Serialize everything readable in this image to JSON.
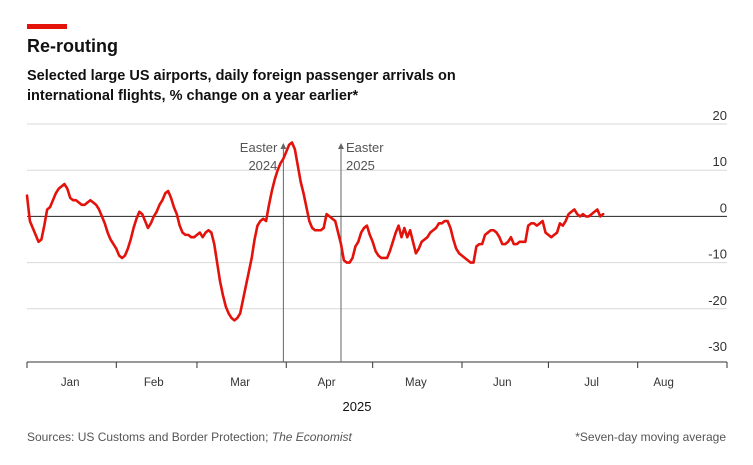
{
  "header": {
    "accent_color": "#e3120b",
    "title": "Re-routing",
    "subtitle": "Selected large US airports, daily foreign passenger arrivals on international flights, % change on a year earlier*"
  },
  "footer": {
    "source_prefix": "Sources: US Customs and Border Protection; ",
    "source_italic": "The Economist",
    "note": "*Seven-day moving average"
  },
  "chart_data": {
    "type": "line",
    "title": "Re-routing",
    "subtitle": "Selected large US airports, daily foreign passenger arrivals on international flights, % change on a year earlier*",
    "xlabel": "2025",
    "ylabel": "",
    "ylim": [
      -30,
      20
    ],
    "yticks": [
      20,
      10,
      0,
      -10,
      -20,
      -30
    ],
    "yticklabels": [
      "20",
      "10",
      "0",
      "-10",
      "-20",
      "-30"
    ],
    "xlim": [
      "2025-01-01",
      "2025-09-01"
    ],
    "months": [
      {
        "label": "Jan",
        "start": "2025-01-01",
        "mid": "2025-01-16"
      },
      {
        "label": "Feb",
        "start": "2025-02-01",
        "mid": "2025-02-14"
      },
      {
        "label": "Mar",
        "start": "2025-03-01",
        "mid": "2025-03-16"
      },
      {
        "label": "Apr",
        "start": "2025-04-01",
        "mid": "2025-04-15"
      },
      {
        "label": "May",
        "start": "2025-05-01",
        "mid": "2025-05-16"
      },
      {
        "label": "Jun",
        "start": "2025-06-01",
        "mid": "2025-06-15"
      },
      {
        "label": "Jul",
        "start": "2025-07-01",
        "mid": "2025-07-16"
      },
      {
        "label": "Aug",
        "start": "2025-08-01",
        "mid": "2025-08-10"
      }
    ],
    "month_end": "2025-09-01",
    "grid": true,
    "line_color": "#e3120b",
    "annotations": [
      {
        "date": "2025-03-31",
        "line1": "Easter",
        "line2": "2024",
        "align": "left"
      },
      {
        "date": "2025-04-20",
        "line1": "Easter",
        "line2": "2025",
        "align": "right"
      }
    ],
    "series": [
      {
        "values": [
          [
            "2025-01-01",
            4.5
          ],
          [
            "2025-01-02",
            -1
          ],
          [
            "2025-01-03",
            -2.5
          ],
          [
            "2025-01-04",
            -4
          ],
          [
            "2025-01-05",
            -5.5
          ],
          [
            "2025-01-06",
            -5
          ],
          [
            "2025-01-07",
            -2
          ],
          [
            "2025-01-08",
            1.5
          ],
          [
            "2025-01-09",
            2
          ],
          [
            "2025-01-10",
            3.5
          ],
          [
            "2025-01-11",
            5
          ],
          [
            "2025-01-12",
            6
          ],
          [
            "2025-01-13",
            6.5
          ],
          [
            "2025-01-14",
            7
          ],
          [
            "2025-01-15",
            6
          ],
          [
            "2025-01-16",
            4
          ],
          [
            "2025-01-17",
            3.5
          ],
          [
            "2025-01-18",
            3.5
          ],
          [
            "2025-01-19",
            3
          ],
          [
            "2025-01-20",
            2.5
          ],
          [
            "2025-01-21",
            2.5
          ],
          [
            "2025-01-22",
            3
          ],
          [
            "2025-01-23",
            3.5
          ],
          [
            "2025-01-24",
            3
          ],
          [
            "2025-01-25",
            2.5
          ],
          [
            "2025-01-26",
            1.5
          ],
          [
            "2025-01-27",
            0
          ],
          [
            "2025-01-28",
            -1.5
          ],
          [
            "2025-01-29",
            -3.5
          ],
          [
            "2025-01-30",
            -5
          ],
          [
            "2025-01-31",
            -6
          ],
          [
            "2025-02-01",
            -7
          ],
          [
            "2025-02-02",
            -8.5
          ],
          [
            "2025-02-03",
            -9
          ],
          [
            "2025-02-04",
            -8.5
          ],
          [
            "2025-02-05",
            -7
          ],
          [
            "2025-02-06",
            -5
          ],
          [
            "2025-02-07",
            -2.5
          ],
          [
            "2025-02-08",
            -0.5
          ],
          [
            "2025-02-09",
            1
          ],
          [
            "2025-02-10",
            0.5
          ],
          [
            "2025-02-11",
            -1
          ],
          [
            "2025-02-12",
            -2.5
          ],
          [
            "2025-02-13",
            -1.5
          ],
          [
            "2025-02-14",
            0
          ],
          [
            "2025-02-15",
            1
          ],
          [
            "2025-02-16",
            2.5
          ],
          [
            "2025-02-17",
            3.5
          ],
          [
            "2025-02-18",
            5
          ],
          [
            "2025-02-19",
            5.5
          ],
          [
            "2025-02-20",
            4
          ],
          [
            "2025-02-21",
            2
          ],
          [
            "2025-02-22",
            0.5
          ],
          [
            "2025-02-23",
            -2
          ],
          [
            "2025-02-24",
            -3.5
          ],
          [
            "2025-02-25",
            -4
          ],
          [
            "2025-02-26",
            -4
          ],
          [
            "2025-02-27",
            -4.5
          ],
          [
            "2025-02-28",
            -4.5
          ],
          [
            "2025-03-01",
            -4
          ],
          [
            "2025-03-02",
            -3.5
          ],
          [
            "2025-03-03",
            -4.5
          ],
          [
            "2025-03-04",
            -3.5
          ],
          [
            "2025-03-05",
            -3
          ],
          [
            "2025-03-06",
            -3.5
          ],
          [
            "2025-03-07",
            -6
          ],
          [
            "2025-03-08",
            -10
          ],
          [
            "2025-03-09",
            -14
          ],
          [
            "2025-03-10",
            -17
          ],
          [
            "2025-03-11",
            -19.5
          ],
          [
            "2025-03-12",
            -21
          ],
          [
            "2025-03-13",
            -22
          ],
          [
            "2025-03-14",
            -22.5
          ],
          [
            "2025-03-15",
            -22
          ],
          [
            "2025-03-16",
            -21
          ],
          [
            "2025-03-17",
            -18
          ],
          [
            "2025-03-18",
            -15
          ],
          [
            "2025-03-19",
            -12
          ],
          [
            "2025-03-20",
            -9
          ],
          [
            "2025-03-21",
            -5
          ],
          [
            "2025-03-22",
            -2
          ],
          [
            "2025-03-23",
            -1
          ],
          [
            "2025-03-24",
            -0.5
          ],
          [
            "2025-03-25",
            -1
          ],
          [
            "2025-03-26",
            2.5
          ],
          [
            "2025-03-27",
            5.5
          ],
          [
            "2025-03-28",
            8
          ],
          [
            "2025-03-29",
            10
          ],
          [
            "2025-03-30",
            11.5
          ],
          [
            "2025-03-31",
            12.5
          ],
          [
            "2025-04-01",
            14
          ],
          [
            "2025-04-02",
            15.5
          ],
          [
            "2025-04-03",
            16
          ],
          [
            "2025-04-04",
            14.5
          ],
          [
            "2025-04-05",
            11
          ],
          [
            "2025-04-06",
            7.5
          ],
          [
            "2025-04-07",
            5
          ],
          [
            "2025-04-08",
            2
          ],
          [
            "2025-04-09",
            -1
          ],
          [
            "2025-04-10",
            -2.5
          ],
          [
            "2025-04-11",
            -3
          ],
          [
            "2025-04-12",
            -3
          ],
          [
            "2025-04-13",
            -3
          ],
          [
            "2025-04-14",
            -2.5
          ],
          [
            "2025-04-15",
            0.5
          ],
          [
            "2025-04-16",
            0
          ],
          [
            "2025-04-17",
            -0.5
          ],
          [
            "2025-04-18",
            -1
          ],
          [
            "2025-04-19",
            -3.5
          ],
          [
            "2025-04-20",
            -6
          ],
          [
            "2025-04-21",
            -9.5
          ],
          [
            "2025-04-22",
            -10
          ],
          [
            "2025-04-23",
            -10
          ],
          [
            "2025-04-24",
            -9
          ],
          [
            "2025-04-25",
            -6.5
          ],
          [
            "2025-04-26",
            -5.5
          ],
          [
            "2025-04-27",
            -3.5
          ],
          [
            "2025-04-28",
            -2.5
          ],
          [
            "2025-04-29",
            -2
          ],
          [
            "2025-04-30",
            -4
          ],
          [
            "2025-05-01",
            -5.5
          ],
          [
            "2025-05-02",
            -7.5
          ],
          [
            "2025-05-03",
            -8.5
          ],
          [
            "2025-05-04",
            -9
          ],
          [
            "2025-05-05",
            -9
          ],
          [
            "2025-05-06",
            -9
          ],
          [
            "2025-05-07",
            -7.5
          ],
          [
            "2025-05-08",
            -5.5
          ],
          [
            "2025-05-09",
            -3.5
          ],
          [
            "2025-05-10",
            -2
          ],
          [
            "2025-05-11",
            -4.5
          ],
          [
            "2025-05-12",
            -2.5
          ],
          [
            "2025-05-13",
            -4.5
          ],
          [
            "2025-05-14",
            -3
          ],
          [
            "2025-05-15",
            -5.5
          ],
          [
            "2025-05-16",
            -8
          ],
          [
            "2025-05-17",
            -7
          ],
          [
            "2025-05-18",
            -5.5
          ],
          [
            "2025-05-19",
            -5
          ],
          [
            "2025-05-20",
            -4.5
          ],
          [
            "2025-05-21",
            -3.5
          ],
          [
            "2025-05-22",
            -3
          ],
          [
            "2025-05-23",
            -2.5
          ],
          [
            "2025-05-24",
            -1.5
          ],
          [
            "2025-05-25",
            -1.5
          ],
          [
            "2025-05-26",
            -1
          ],
          [
            "2025-05-27",
            -1
          ],
          [
            "2025-05-28",
            -2.5
          ],
          [
            "2025-05-29",
            -5
          ],
          [
            "2025-05-30",
            -7
          ],
          [
            "2025-05-31",
            -8
          ],
          [
            "2025-06-01",
            -8.5
          ],
          [
            "2025-06-02",
            -9
          ],
          [
            "2025-06-03",
            -9.5
          ],
          [
            "2025-06-04",
            -10
          ],
          [
            "2025-06-05",
            -10
          ],
          [
            "2025-06-06",
            -6.5
          ],
          [
            "2025-06-07",
            -6
          ],
          [
            "2025-06-08",
            -6
          ],
          [
            "2025-06-09",
            -4
          ],
          [
            "2025-06-10",
            -3.5
          ],
          [
            "2025-06-11",
            -3
          ],
          [
            "2025-06-12",
            -3
          ],
          [
            "2025-06-13",
            -3.5
          ],
          [
            "2025-06-14",
            -4.5
          ],
          [
            "2025-06-15",
            -6
          ],
          [
            "2025-06-16",
            -6
          ],
          [
            "2025-06-17",
            -5.5
          ],
          [
            "2025-06-18",
            -4.5
          ],
          [
            "2025-06-19",
            -6
          ],
          [
            "2025-06-20",
            -6
          ],
          [
            "2025-06-21",
            -5.5
          ],
          [
            "2025-06-22",
            -5.5
          ],
          [
            "2025-06-23",
            -5.5
          ],
          [
            "2025-06-24",
            -2
          ],
          [
            "2025-06-25",
            -1.5
          ],
          [
            "2025-06-26",
            -1.5
          ],
          [
            "2025-06-27",
            -2
          ],
          [
            "2025-06-28",
            -1.5
          ],
          [
            "2025-06-29",
            -1
          ],
          [
            "2025-06-30",
            -3.5
          ],
          [
            "2025-07-01",
            -4
          ],
          [
            "2025-07-02",
            -4.5
          ],
          [
            "2025-07-03",
            -4
          ],
          [
            "2025-07-04",
            -3.5
          ],
          [
            "2025-07-05",
            -1.5
          ],
          [
            "2025-07-06",
            -2
          ],
          [
            "2025-07-07",
            -1
          ],
          [
            "2025-07-08",
            0.5
          ],
          [
            "2025-07-09",
            1
          ],
          [
            "2025-07-10",
            1.5
          ],
          [
            "2025-07-11",
            0.5
          ],
          [
            "2025-07-12",
            0
          ],
          [
            "2025-07-13",
            0.5
          ],
          [
            "2025-07-14",
            0
          ],
          [
            "2025-07-15",
            0
          ],
          [
            "2025-07-16",
            0.5
          ],
          [
            "2025-07-17",
            1
          ],
          [
            "2025-07-18",
            1.5
          ],
          [
            "2025-07-19",
            0
          ],
          [
            "2025-07-20",
            0.5
          ]
        ]
      }
    ]
  }
}
